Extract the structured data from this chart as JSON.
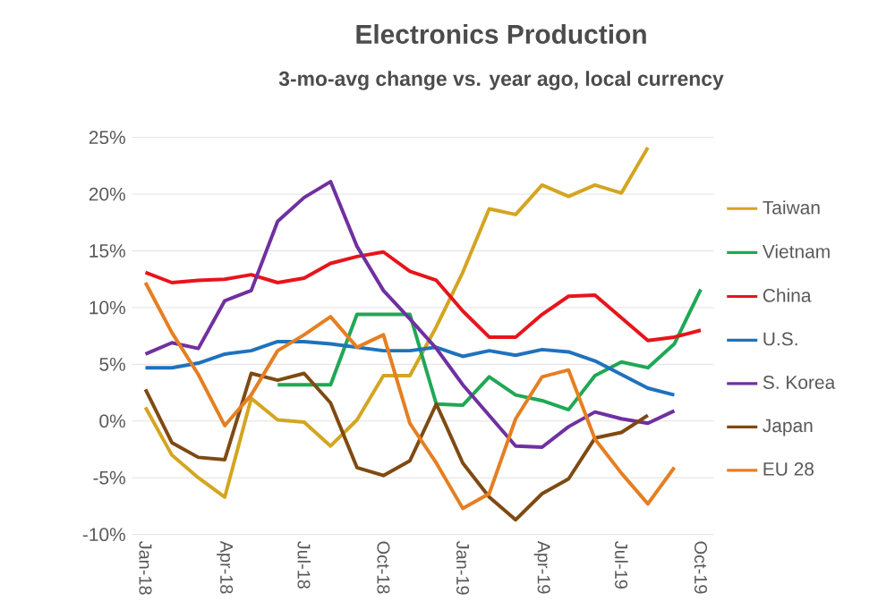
{
  "chart_data": {
    "type": "line",
    "title": "Electronics Production",
    "subtitle": "3-mo-avg change vs. year ago, local currency",
    "categories": [
      "Jan-18",
      null,
      null,
      "Apr-18",
      null,
      null,
      "Jul-18",
      null,
      null,
      "Oct-18",
      null,
      null,
      "Jan-19",
      null,
      null,
      "Apr-19",
      null,
      null,
      "Jul-19",
      null,
      null,
      "Oct-19"
    ],
    "series": [
      {
        "name": "Taiwan",
        "color": "#d4a520",
        "values": [
          1.2,
          -3,
          -5,
          -6.7,
          2,
          0.1,
          -0.1,
          -2.2,
          0.1,
          4,
          4,
          8.3,
          13.1,
          18.7,
          18.2,
          20.8,
          19.8,
          20.8,
          20.1,
          24.1,
          null,
          null
        ]
      },
      {
        "name": "Vietnam",
        "color": "#1fa855",
        "values": [
          null,
          null,
          null,
          null,
          null,
          3.2,
          3.2,
          3.2,
          9.4,
          9.4,
          9.4,
          1.5,
          1.4,
          3.9,
          2.3,
          1.8,
          1.0,
          4.0,
          5.2,
          4.7,
          6.8,
          11.6
        ]
      },
      {
        "name": "China",
        "color": "#e8141c",
        "values": [
          13.1,
          12.2,
          12.4,
          12.5,
          12.9,
          12.2,
          12.6,
          13.9,
          14.5,
          14.9,
          13.2,
          12.4,
          9.7,
          7.4,
          7.4,
          9.4,
          11.0,
          11.1,
          9.1,
          7.1,
          7.4,
          8.0
        ]
      },
      {
        "name": "U.S.",
        "color": "#1f72bd",
        "values": [
          4.7,
          4.7,
          5.1,
          5.9,
          6.2,
          7.0,
          7.0,
          6.8,
          6.5,
          6.2,
          6.2,
          6.5,
          5.7,
          6.2,
          5.8,
          6.3,
          6.1,
          5.3,
          4.1,
          2.9,
          2.3,
          null
        ]
      },
      {
        "name": "S. Korea",
        "color": "#7030a0",
        "values": [
          5.9,
          6.9,
          6.4,
          10.6,
          11.5,
          17.6,
          19.7,
          21.1,
          15.4,
          11.5,
          9.0,
          6.4,
          3.2,
          0.5,
          -2.2,
          -2.3,
          -0.5,
          0.8,
          0.2,
          -0.2,
          0.9,
          null
        ]
      },
      {
        "name": "Japan",
        "color": "#7f4a12",
        "values": [
          2.8,
          -1.9,
          -3.2,
          -3.4,
          4.2,
          3.6,
          4.2,
          1.6,
          -4.1,
          -4.8,
          -3.5,
          1.5,
          -3.7,
          -6.7,
          -8.7,
          -6.4,
          -5.1,
          -1.5,
          -1.0,
          0.5,
          null,
          null
        ]
      },
      {
        "name": "EU 28",
        "color": "#e57f22",
        "values": [
          12.2,
          7.8,
          4.1,
          -0.4,
          2.3,
          6.2,
          7.6,
          9.2,
          6.5,
          7.6,
          -0.2,
          -3.7,
          -7.7,
          -6.4,
          0.2,
          3.9,
          4.5,
          -1.6,
          -4.6,
          -7.3,
          -4.1,
          null
        ]
      }
    ],
    "ylim": [
      -10,
      25
    ],
    "yticks": [
      {
        "value": -10,
        "label": "-10%"
      },
      {
        "value": -5,
        "label": "-5%"
      },
      {
        "value": 0,
        "label": "0%"
      },
      {
        "value": 5,
        "label": "5%"
      },
      {
        "value": 10,
        "label": "10%"
      },
      {
        "value": 15,
        "label": "15%"
      },
      {
        "value": 20,
        "label": "20%"
      },
      {
        "value": 25,
        "label": "25%"
      }
    ],
    "grid": "y",
    "legend": "right",
    "marker": "none",
    "line_style": "solid"
  }
}
